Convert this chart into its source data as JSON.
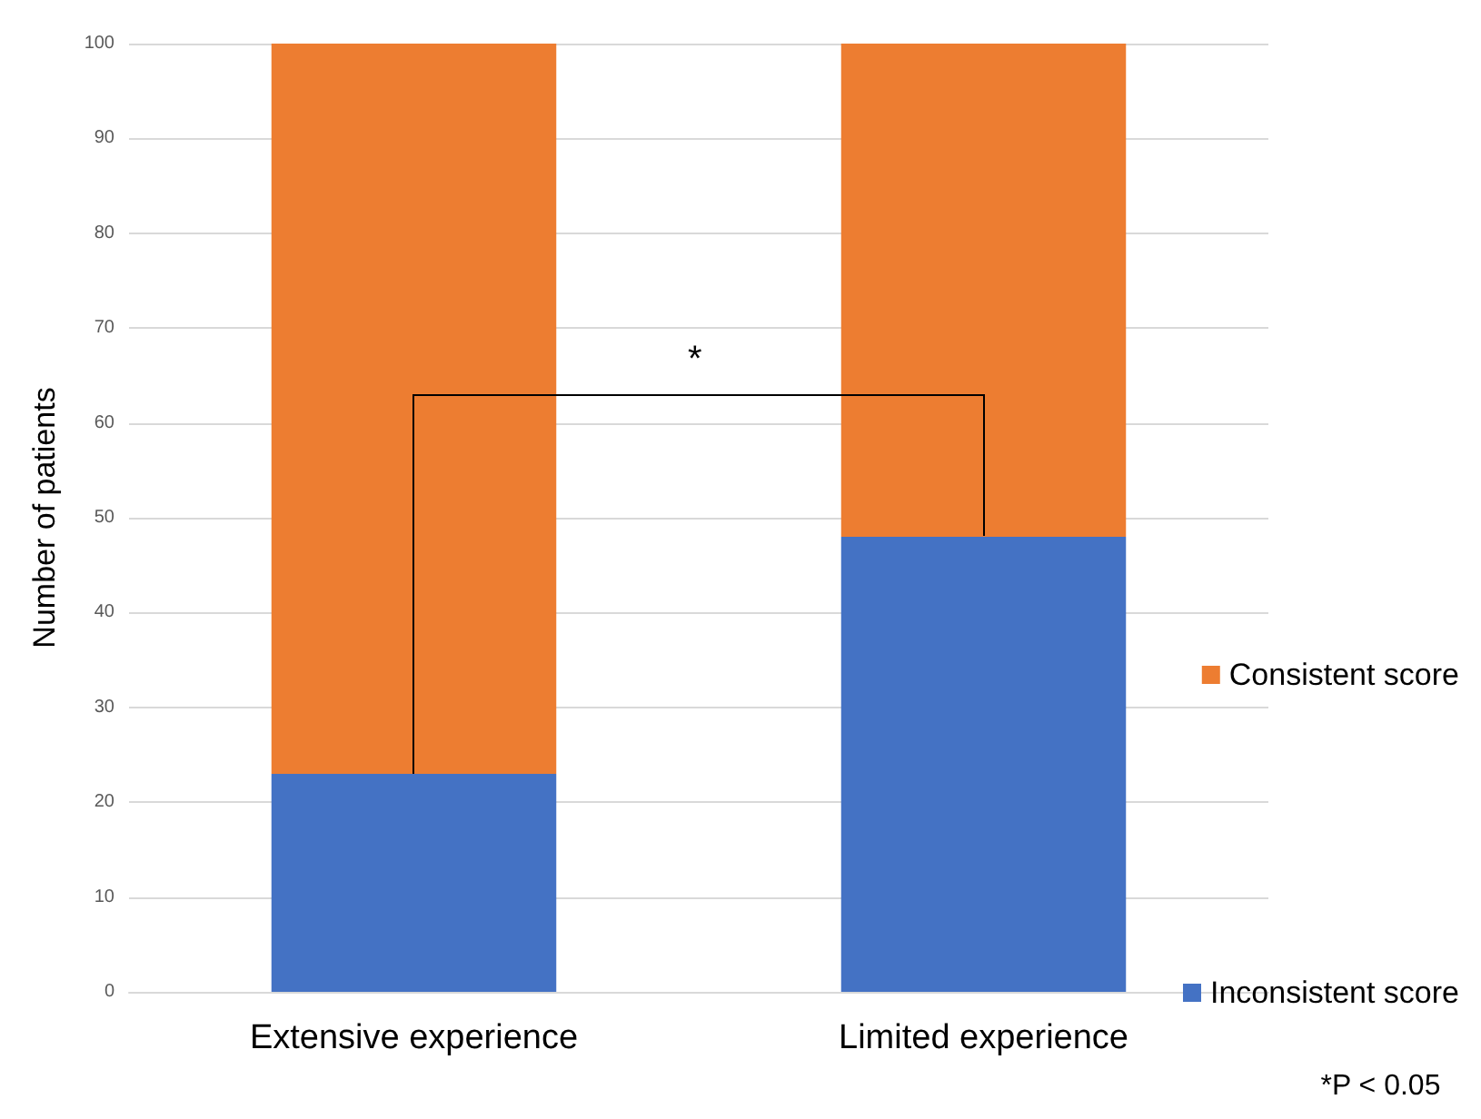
{
  "chart_data": {
    "type": "bar",
    "stacked": true,
    "categories": [
      "Extensive experience",
      "Limited experience"
    ],
    "series": [
      {
        "name": "Inconsistent score",
        "color": "#4472c4",
        "values": [
          23,
          48
        ]
      },
      {
        "name": "Consistent score",
        "color": "#ed7d31",
        "values": [
          77,
          52
        ]
      }
    ],
    "ylabel": "Number of patients",
    "ylim": [
      0,
      100
    ],
    "yticks": [
      0,
      10,
      20,
      30,
      40,
      50,
      60,
      70,
      80,
      90,
      100
    ],
    "grid": "y",
    "legend": "right",
    "annotations": [
      "*",
      "*P < 0.05"
    ]
  }
}
